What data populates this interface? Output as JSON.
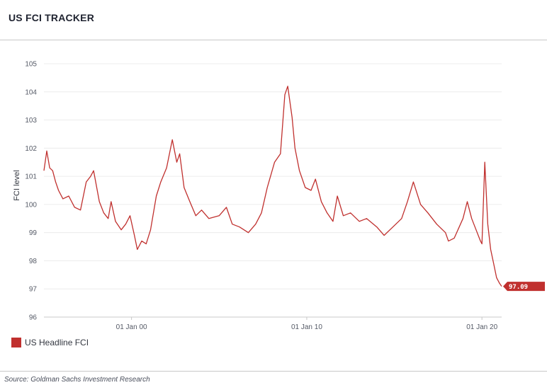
{
  "header": {
    "title": "US FCI TRACKER"
  },
  "footer": {
    "source": "Source: Goldman Sachs Investment Research"
  },
  "colors": {
    "series": "#c0302e",
    "grid": "#ececec",
    "axis": "#c8c8c8"
  },
  "chart_data": {
    "type": "line",
    "title": "",
    "xlabel": "",
    "ylabel": "FCI level",
    "ylim": [
      96,
      105
    ],
    "yticks": [
      96,
      97,
      98,
      99,
      100,
      101,
      102,
      103,
      104,
      105
    ],
    "xlim": [
      "1995-01-01",
      "2021-02-15"
    ],
    "xticks": [
      {
        "date": "2000-01-01",
        "label": "01 Jan 00"
      },
      {
        "date": "2010-01-01",
        "label": "01 Jan 10"
      },
      {
        "date": "2020-01-01",
        "label": "01 Jan 20"
      }
    ],
    "grid": "horizontal",
    "legend_position": "bottom-left",
    "last_value_label": "97.09",
    "series": [
      {
        "name": "US Headline FCI",
        "points": [
          [
            "1995-01-01",
            101.2
          ],
          [
            "1995-03-01",
            101.9
          ],
          [
            "1995-05-01",
            101.3
          ],
          [
            "1995-07-01",
            101.2
          ],
          [
            "1995-09-01",
            100.8
          ],
          [
            "1995-11-01",
            100.5
          ],
          [
            "1996-02-01",
            100.2
          ],
          [
            "1996-06-01",
            100.3
          ],
          [
            "1996-10-01",
            99.9
          ],
          [
            "1997-02-01",
            99.8
          ],
          [
            "1997-06-01",
            100.8
          ],
          [
            "1997-09-01",
            101.0
          ],
          [
            "1997-11-01",
            101.2
          ],
          [
            "1998-03-01",
            100.1
          ],
          [
            "1998-06-01",
            99.7
          ],
          [
            "1998-09-01",
            99.5
          ],
          [
            "1998-11-01",
            100.1
          ],
          [
            "1999-02-01",
            99.4
          ],
          [
            "1999-06-01",
            99.1
          ],
          [
            "1999-09-01",
            99.3
          ],
          [
            "1999-12-01",
            99.6
          ],
          [
            "2000-03-01",
            98.9
          ],
          [
            "2000-05-01",
            98.4
          ],
          [
            "2000-08-01",
            98.7
          ],
          [
            "2000-11-01",
            98.6
          ],
          [
            "2001-02-01",
            99.1
          ],
          [
            "2001-06-01",
            100.3
          ],
          [
            "2001-09-01",
            100.8
          ],
          [
            "2002-01-01",
            101.3
          ],
          [
            "2002-05-01",
            102.3
          ],
          [
            "2002-08-01",
            101.5
          ],
          [
            "2002-10-01",
            101.8
          ],
          [
            "2003-01-01",
            100.6
          ],
          [
            "2003-05-01",
            100.1
          ],
          [
            "2003-09-01",
            99.6
          ],
          [
            "2004-01-01",
            99.8
          ],
          [
            "2004-06-01",
            99.5
          ],
          [
            "2005-01-01",
            99.6
          ],
          [
            "2005-06-01",
            99.9
          ],
          [
            "2005-10-01",
            99.3
          ],
          [
            "2006-03-01",
            99.2
          ],
          [
            "2006-09-01",
            99.0
          ],
          [
            "2007-02-01",
            99.3
          ],
          [
            "2007-06-01",
            99.7
          ],
          [
            "2007-10-01",
            100.6
          ],
          [
            "2008-03-01",
            101.5
          ],
          [
            "2008-07-01",
            101.8
          ],
          [
            "2008-10-01",
            103.9
          ],
          [
            "2008-12-01",
            104.2
          ],
          [
            "2009-03-01",
            103.1
          ],
          [
            "2009-05-01",
            102.0
          ],
          [
            "2009-08-01",
            101.2
          ],
          [
            "2009-12-01",
            100.6
          ],
          [
            "2010-04-01",
            100.5
          ],
          [
            "2010-07-01",
            100.9
          ],
          [
            "2010-11-01",
            100.1
          ],
          [
            "2011-03-01",
            99.7
          ],
          [
            "2011-07-01",
            99.4
          ],
          [
            "2011-10-01",
            100.3
          ],
          [
            "2012-02-01",
            99.6
          ],
          [
            "2012-07-01",
            99.7
          ],
          [
            "2013-01-01",
            99.4
          ],
          [
            "2013-06-01",
            99.5
          ],
          [
            "2014-01-01",
            99.2
          ],
          [
            "2014-06-01",
            98.9
          ],
          [
            "2014-12-01",
            99.2
          ],
          [
            "2015-06-01",
            99.5
          ],
          [
            "2015-10-01",
            100.1
          ],
          [
            "2016-02-01",
            100.8
          ],
          [
            "2016-07-01",
            100.0
          ],
          [
            "2016-12-01",
            99.7
          ],
          [
            "2017-06-01",
            99.3
          ],
          [
            "2017-12-01",
            99.0
          ],
          [
            "2018-02-01",
            98.7
          ],
          [
            "2018-06-01",
            98.8
          ],
          [
            "2018-12-01",
            99.5
          ],
          [
            "2019-03-01",
            100.1
          ],
          [
            "2019-06-01",
            99.5
          ],
          [
            "2019-09-01",
            99.1
          ],
          [
            "2019-12-01",
            98.7
          ],
          [
            "2020-01-01",
            98.6
          ],
          [
            "2020-03-01",
            101.5
          ],
          [
            "2020-05-01",
            99.3
          ],
          [
            "2020-07-01",
            98.4
          ],
          [
            "2020-09-01",
            97.9
          ],
          [
            "2020-11-01",
            97.4
          ],
          [
            "2021-01-01",
            97.2
          ],
          [
            "2021-02-15",
            97.09
          ]
        ]
      }
    ]
  }
}
